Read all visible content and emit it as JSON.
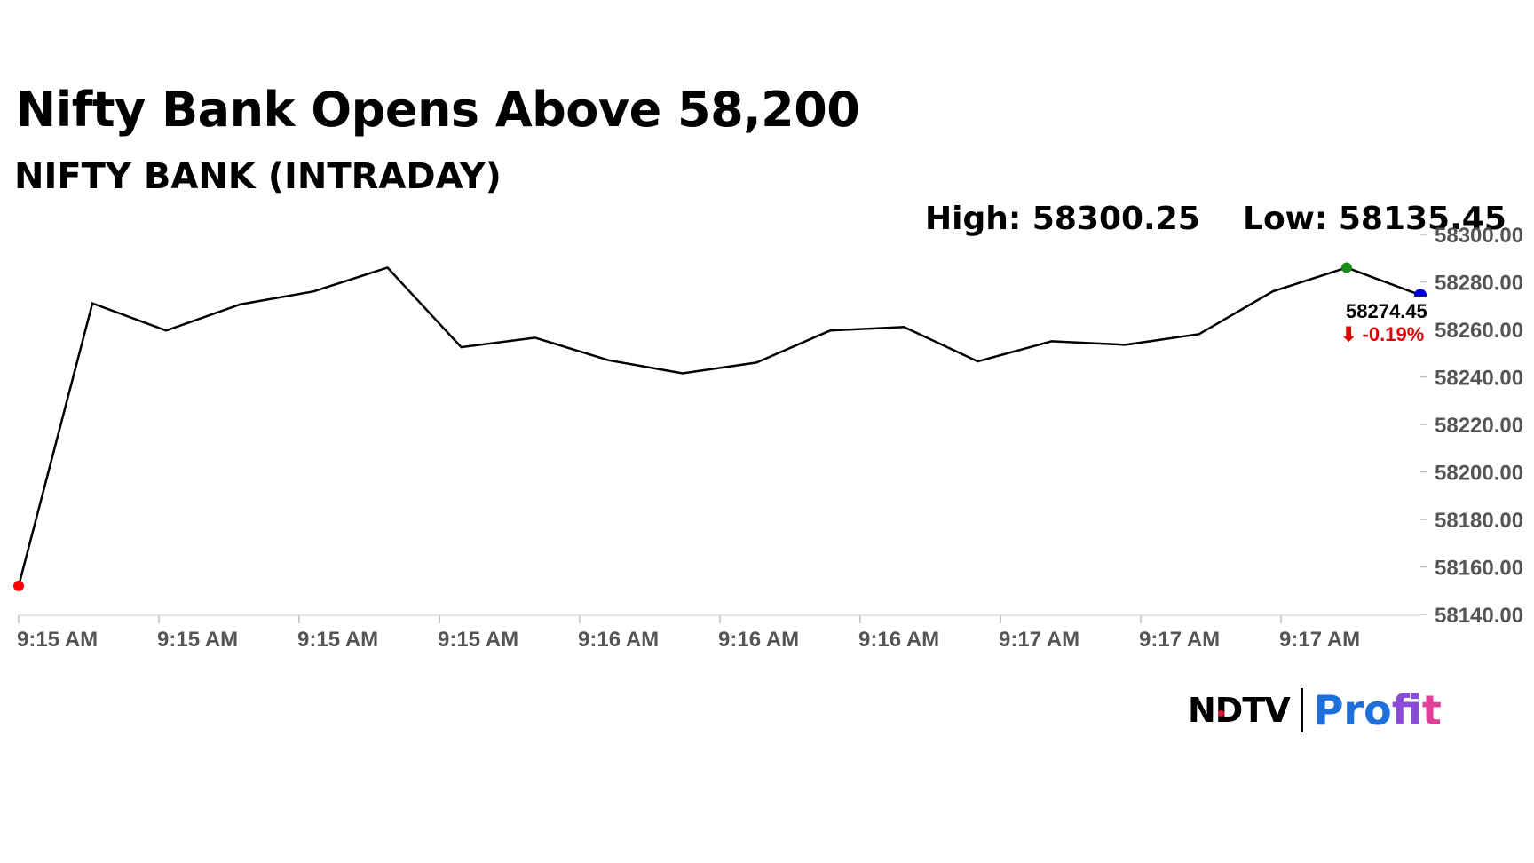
{
  "header": {
    "title": "Nifty Bank Opens Above 58,200",
    "subtitle": "NIFTY BANK (INTRADAY)",
    "high_label": "High: 58300.25",
    "low_label": "Low: 58135.45"
  },
  "last_value": {
    "price": "58274.45",
    "change": "⬇ -0.19%"
  },
  "logo": {
    "brand": "NDTV",
    "product_part1": "Pro",
    "product_part2": "f",
    "product_part3": "it"
  },
  "colors": {
    "line": "#000000",
    "start_marker": "#ff0000",
    "peak_marker": "#1a8a1a",
    "end_marker": "#0000cc",
    "change_negative": "#e00000",
    "axis_text": "#555555",
    "grid": "#dddddd"
  },
  "chart_data": {
    "type": "line",
    "title": "NIFTY BANK (INTRADAY)",
    "x_tick_labels": [
      "9:15 AM",
      "9:15 AM",
      "9:15 AM",
      "9:15 AM",
      "9:16 AM",
      "9:16 AM",
      "9:16 AM",
      "9:17 AM",
      "9:17 AM",
      "9:17 AM"
    ],
    "y_tick_labels": [
      "58300.00",
      "58280.00",
      "58260.00",
      "58240.00",
      "58220.00",
      "58200.00",
      "58180.00",
      "58160.00",
      "58140.00"
    ],
    "ylim": [
      58140,
      58300
    ],
    "series": [
      {
        "values": [
          58152,
          58271,
          58259.5,
          58270.5,
          58276,
          58286,
          58252.5,
          58256.5,
          58247,
          58241.5,
          58246,
          58259.5,
          58261,
          58246.5,
          58255,
          58253.5,
          58258,
          58276,
          58286,
          58274.45
        ]
      }
    ],
    "markers": {
      "start_value": 58152,
      "peak_value": 58286,
      "end_value": 58274.45
    },
    "grid": false,
    "y_axis_side": "right"
  }
}
